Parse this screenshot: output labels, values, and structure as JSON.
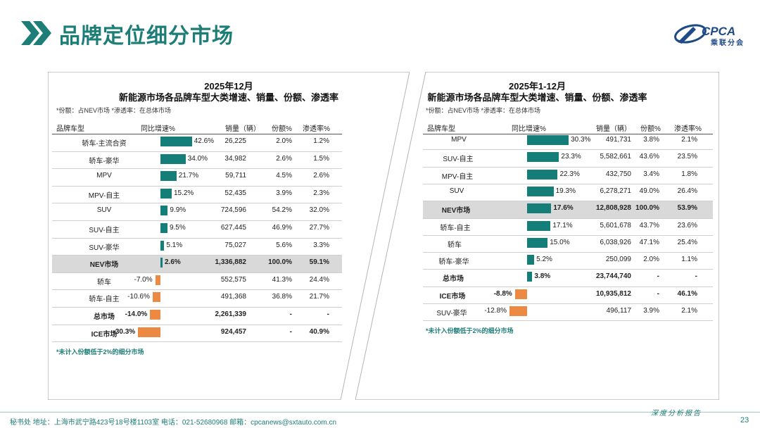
{
  "header": {
    "title": "品牌定位细分市场",
    "logo_text": "CPCA",
    "logo_sub": "乘联分会"
  },
  "chart_data": [
    {
      "type": "table",
      "title": "2025年12月",
      "subtitle": "新能源市场各品牌车型大类增速、销量、份额、渗透率",
      "note": "*份额：占NEV市场  *渗透率：在总体市场",
      "columns": [
        "品牌车型",
        "同比增速%",
        "销量（辆）",
        "份额%",
        "渗透率%"
      ],
      "rows": [
        {
          "name": "轿车-主流合资",
          "growth": 42.6,
          "growth_label": "42.6%",
          "sales": "26,225",
          "share": "2.0%",
          "pen": "1.2%",
          "bold": false
        },
        {
          "name": "轿车-豪华",
          "growth": 34.0,
          "growth_label": "34.0%",
          "sales": "34,982",
          "share": "2.6%",
          "pen": "1.5%",
          "bold": false
        },
        {
          "name": "MPV",
          "growth": 21.7,
          "growth_label": "21.7%",
          "sales": "59,711",
          "share": "4.5%",
          "pen": "2.6%",
          "bold": false
        },
        {
          "name": "MPV-自主",
          "growth": 15.2,
          "growth_label": "15.2%",
          "sales": "52,435",
          "share": "3.9%",
          "pen": "2.3%",
          "bold": false
        },
        {
          "name": "SUV",
          "growth": 9.9,
          "growth_label": "9.9%",
          "sales": "724,596",
          "share": "54.2%",
          "pen": "32.0%",
          "bold": false
        },
        {
          "name": "SUV-自主",
          "growth": 9.5,
          "growth_label": "9.5%",
          "sales": "627,445",
          "share": "46.9%",
          "pen": "27.7%",
          "bold": false
        },
        {
          "name": "SUV-豪华",
          "growth": 5.1,
          "growth_label": "5.1%",
          "sales": "75,027",
          "share": "5.6%",
          "pen": "3.3%",
          "bold": false
        },
        {
          "name": "NEV市场",
          "growth": 2.6,
          "growth_label": "2.6%",
          "sales": "1,336,882",
          "share": "100.0%",
          "pen": "59.1%",
          "bold": true,
          "highlight": true
        },
        {
          "name": "轿车",
          "growth": -7.0,
          "growth_label": "-7.0%",
          "sales": "552,575",
          "share": "41.3%",
          "pen": "24.4%",
          "bold": false
        },
        {
          "name": "轿车-自主",
          "growth": -10.6,
          "growth_label": "-10.6%",
          "sales": "491,368",
          "share": "36.8%",
          "pen": "21.7%",
          "bold": false
        },
        {
          "name": "总市场",
          "growth": -14.0,
          "growth_label": "-14.0%",
          "sales": "2,261,339",
          "share": "-",
          "pen": "-",
          "bold": true
        },
        {
          "name": "ICE市场",
          "growth": -30.3,
          "growth_label": "-30.3%",
          "sales": "924,457",
          "share": "-",
          "pen": "40.9%",
          "bold": true
        }
      ],
      "footnote": "*未计入份额低于2%的细分市场"
    },
    {
      "type": "table",
      "title": "2025年1-12月",
      "subtitle": "新能源市场各品牌车型大类增速、销量、份额、渗透率",
      "note": "*份额：占NEV市场  *渗透率：在总体市场",
      "columns": [
        "品牌车型",
        "同比增速%",
        "销量（辆）",
        "份额%",
        "渗透率%"
      ],
      "rows": [
        {
          "name": "MPV",
          "growth": 30.3,
          "growth_label": "30.3%",
          "sales": "491,731",
          "share": "3.8%",
          "pen": "2.1%",
          "bold": false
        },
        {
          "name": "SUV-自主",
          "growth": 23.3,
          "growth_label": "23.3%",
          "sales": "5,582,661",
          "share": "43.6%",
          "pen": "23.5%",
          "bold": false
        },
        {
          "name": "MPV-自主",
          "growth": 22.3,
          "growth_label": "22.3%",
          "sales": "432,750",
          "share": "3.4%",
          "pen": "1.8%",
          "bold": false
        },
        {
          "name": "SUV",
          "growth": 19.3,
          "growth_label": "19.3%",
          "sales": "6,278,271",
          "share": "49.0%",
          "pen": "26.4%",
          "bold": false
        },
        {
          "name": "NEV市场",
          "growth": 17.6,
          "growth_label": "17.6%",
          "sales": "12,808,928",
          "share": "100.0%",
          "pen": "53.9%",
          "bold": true,
          "highlight": true
        },
        {
          "name": "轿车-自主",
          "growth": 17.1,
          "growth_label": "17.1%",
          "sales": "5,601,678",
          "share": "43.7%",
          "pen": "23.6%",
          "bold": false
        },
        {
          "name": "轿车",
          "growth": 15.0,
          "growth_label": "15.0%",
          "sales": "6,038,926",
          "share": "47.1%",
          "pen": "25.4%",
          "bold": false
        },
        {
          "name": "轿车-豪华",
          "growth": 5.2,
          "growth_label": "5.2%",
          "sales": "250,099",
          "share": "2.0%",
          "pen": "1.1%",
          "bold": false
        },
        {
          "name": "总市场",
          "growth": 3.8,
          "growth_label": "3.8%",
          "sales": "23,744,740",
          "share": "-",
          "pen": "-",
          "bold": true
        },
        {
          "name": "ICE市场",
          "growth": -8.8,
          "growth_label": "-8.8%",
          "sales": "10,935,812",
          "share": "-",
          "pen": "46.1%",
          "bold": true
        },
        {
          "name": "SUV-豪华",
          "growth": -12.8,
          "growth_label": "-12.8%",
          "sales": "496,117",
          "share": "3.9%",
          "pen": "2.1%",
          "bold": false
        }
      ],
      "footnote": "*未计入份额低于2%的细分市场"
    }
  ],
  "footer": {
    "text": "秘书处   地址：上海市武宁路423号18号楼1103室   电话：021-52680968   邮箱：cpcanews@sxtauto.com.cn",
    "right": "深度分析报告",
    "page": "23"
  },
  "colors": {
    "accent": "#1d7d77",
    "positive": "#167e78",
    "negative": "#ec8a44"
  }
}
